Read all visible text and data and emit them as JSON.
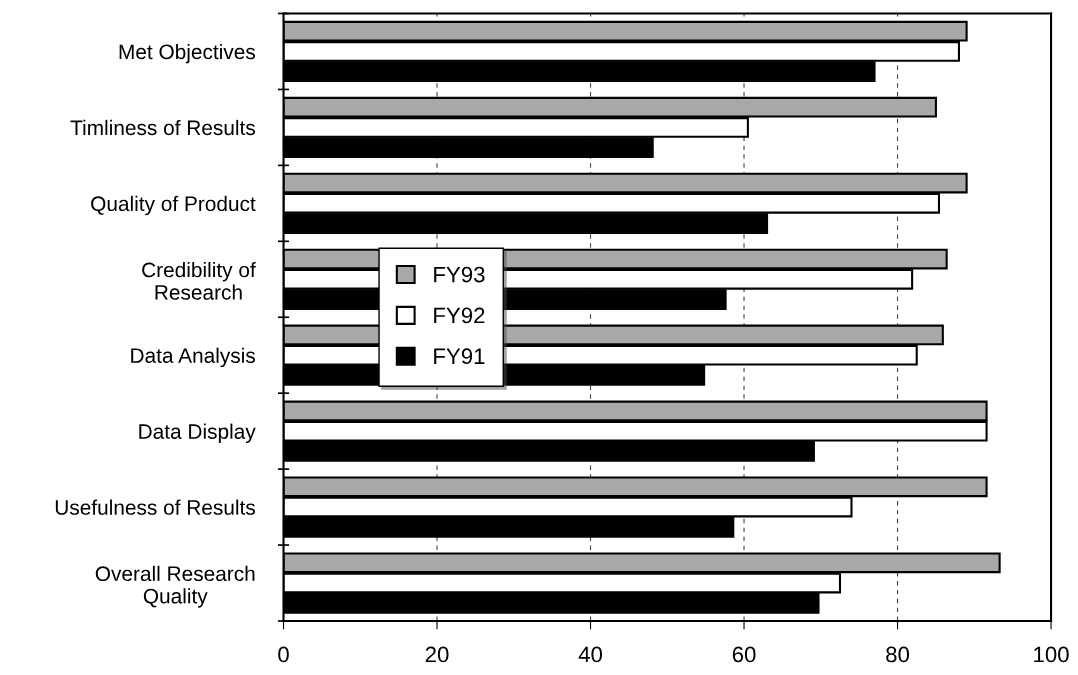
{
  "chart_data": {
    "type": "bar",
    "orientation": "horizontal",
    "categories": [
      "Met Objectives",
      "Timliness of Results",
      "Quality of Product",
      "Credibility of\nResearch",
      "Data Analysis",
      "Data Display",
      "Usefulness of Results",
      "Overall Research\nQuality"
    ],
    "series": [
      {
        "name": "FY93",
        "color": "#a8a8a8",
        "values": [
          89,
          85,
          89,
          86.4,
          85.9,
          91.6,
          91.6,
          93.3
        ]
      },
      {
        "name": "FY92",
        "color": "#ffffff",
        "values": [
          88,
          60.5,
          85.4,
          81.9,
          82.5,
          91.6,
          74,
          72.5
        ]
      },
      {
        "name": "FY91",
        "color": "#000000",
        "values": [
          77,
          48.1,
          63,
          57.6,
          54.8,
          69.1,
          58.6,
          69.7
        ]
      }
    ],
    "xlim": [
      0,
      100
    ],
    "xticks": [
      0,
      20,
      40,
      60,
      80,
      100
    ],
    "grid": "x",
    "legend": "center left"
  }
}
